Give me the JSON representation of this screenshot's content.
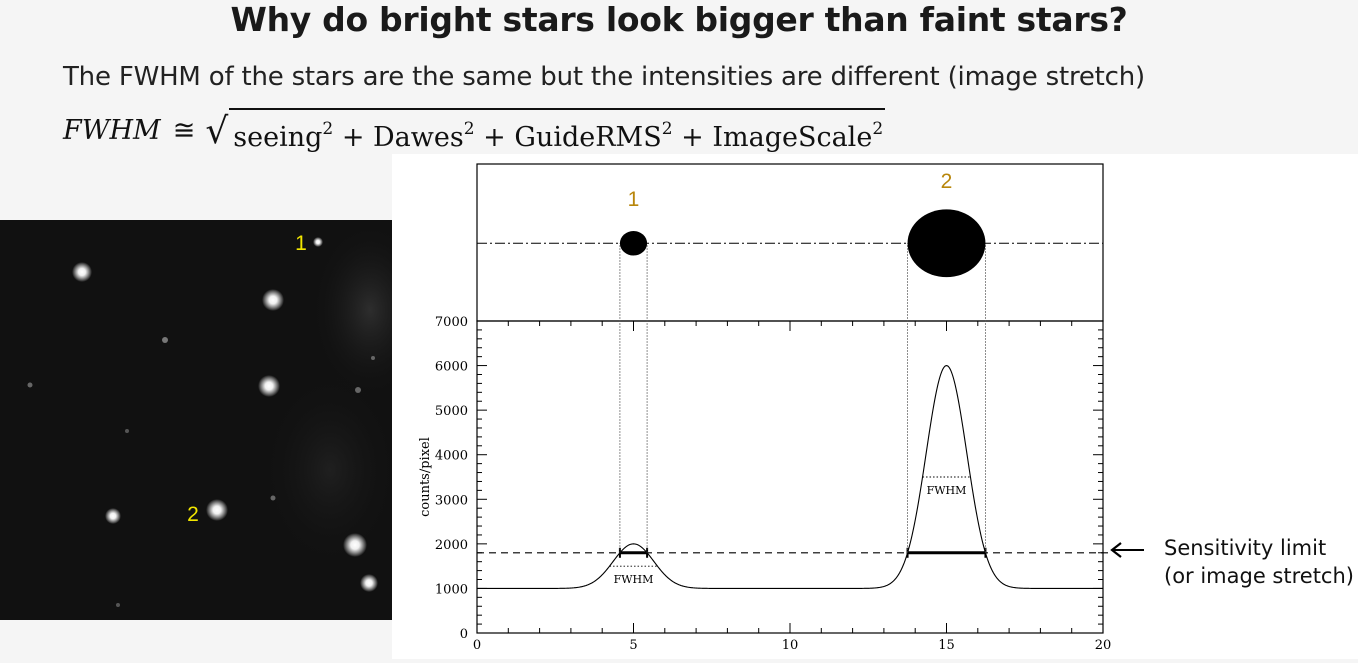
{
  "slide": {
    "title": "Why do bright stars look bigger than faint stars?",
    "subtitle": "The FWHM of the stars are the same but the intensities are different (image stretch)",
    "formula": {
      "lhs": "FWHM",
      "relation": "≅",
      "terms": [
        "seeing",
        "Dawes",
        "GuideRMS",
        "ImageScale"
      ],
      "exponent": "2",
      "operator": "+"
    }
  },
  "photo": {
    "label_1": "1",
    "label_2": "2",
    "label_color": "#f2e600"
  },
  "chart_data": {
    "type": "line",
    "xlim": [
      0,
      20
    ],
    "ylim": [
      0,
      7000
    ],
    "x_ticks": [
      0,
      5,
      10,
      15,
      20
    ],
    "y_ticks": [
      0,
      1000,
      2000,
      3000,
      4000,
      5000,
      6000,
      7000
    ],
    "ylabel": "counts/pixel",
    "xlabel": "",
    "baseline": 1000,
    "peaks": [
      {
        "label": "1",
        "center": 5,
        "peak": 2000,
        "fwhm_label": "FWHM",
        "fwhm_level": 1500
      },
      {
        "label": "2",
        "center": 15,
        "peak": 6000,
        "fwhm_label": "FWHM",
        "fwhm_level": 3500
      }
    ],
    "threshold": 1800,
    "threshold_label": "Sensitivity limit\n(or image stretch)",
    "star_label_color": "#b8860b"
  },
  "annotation": {
    "line1": "Sensitivity limit",
    "line2": "(or image stretch)"
  },
  "colors": {
    "background": "#f5f5f5",
    "photo_background": "#101010",
    "star_label_gold": "#b8860b",
    "star_label_yellow": "#f2e600"
  }
}
